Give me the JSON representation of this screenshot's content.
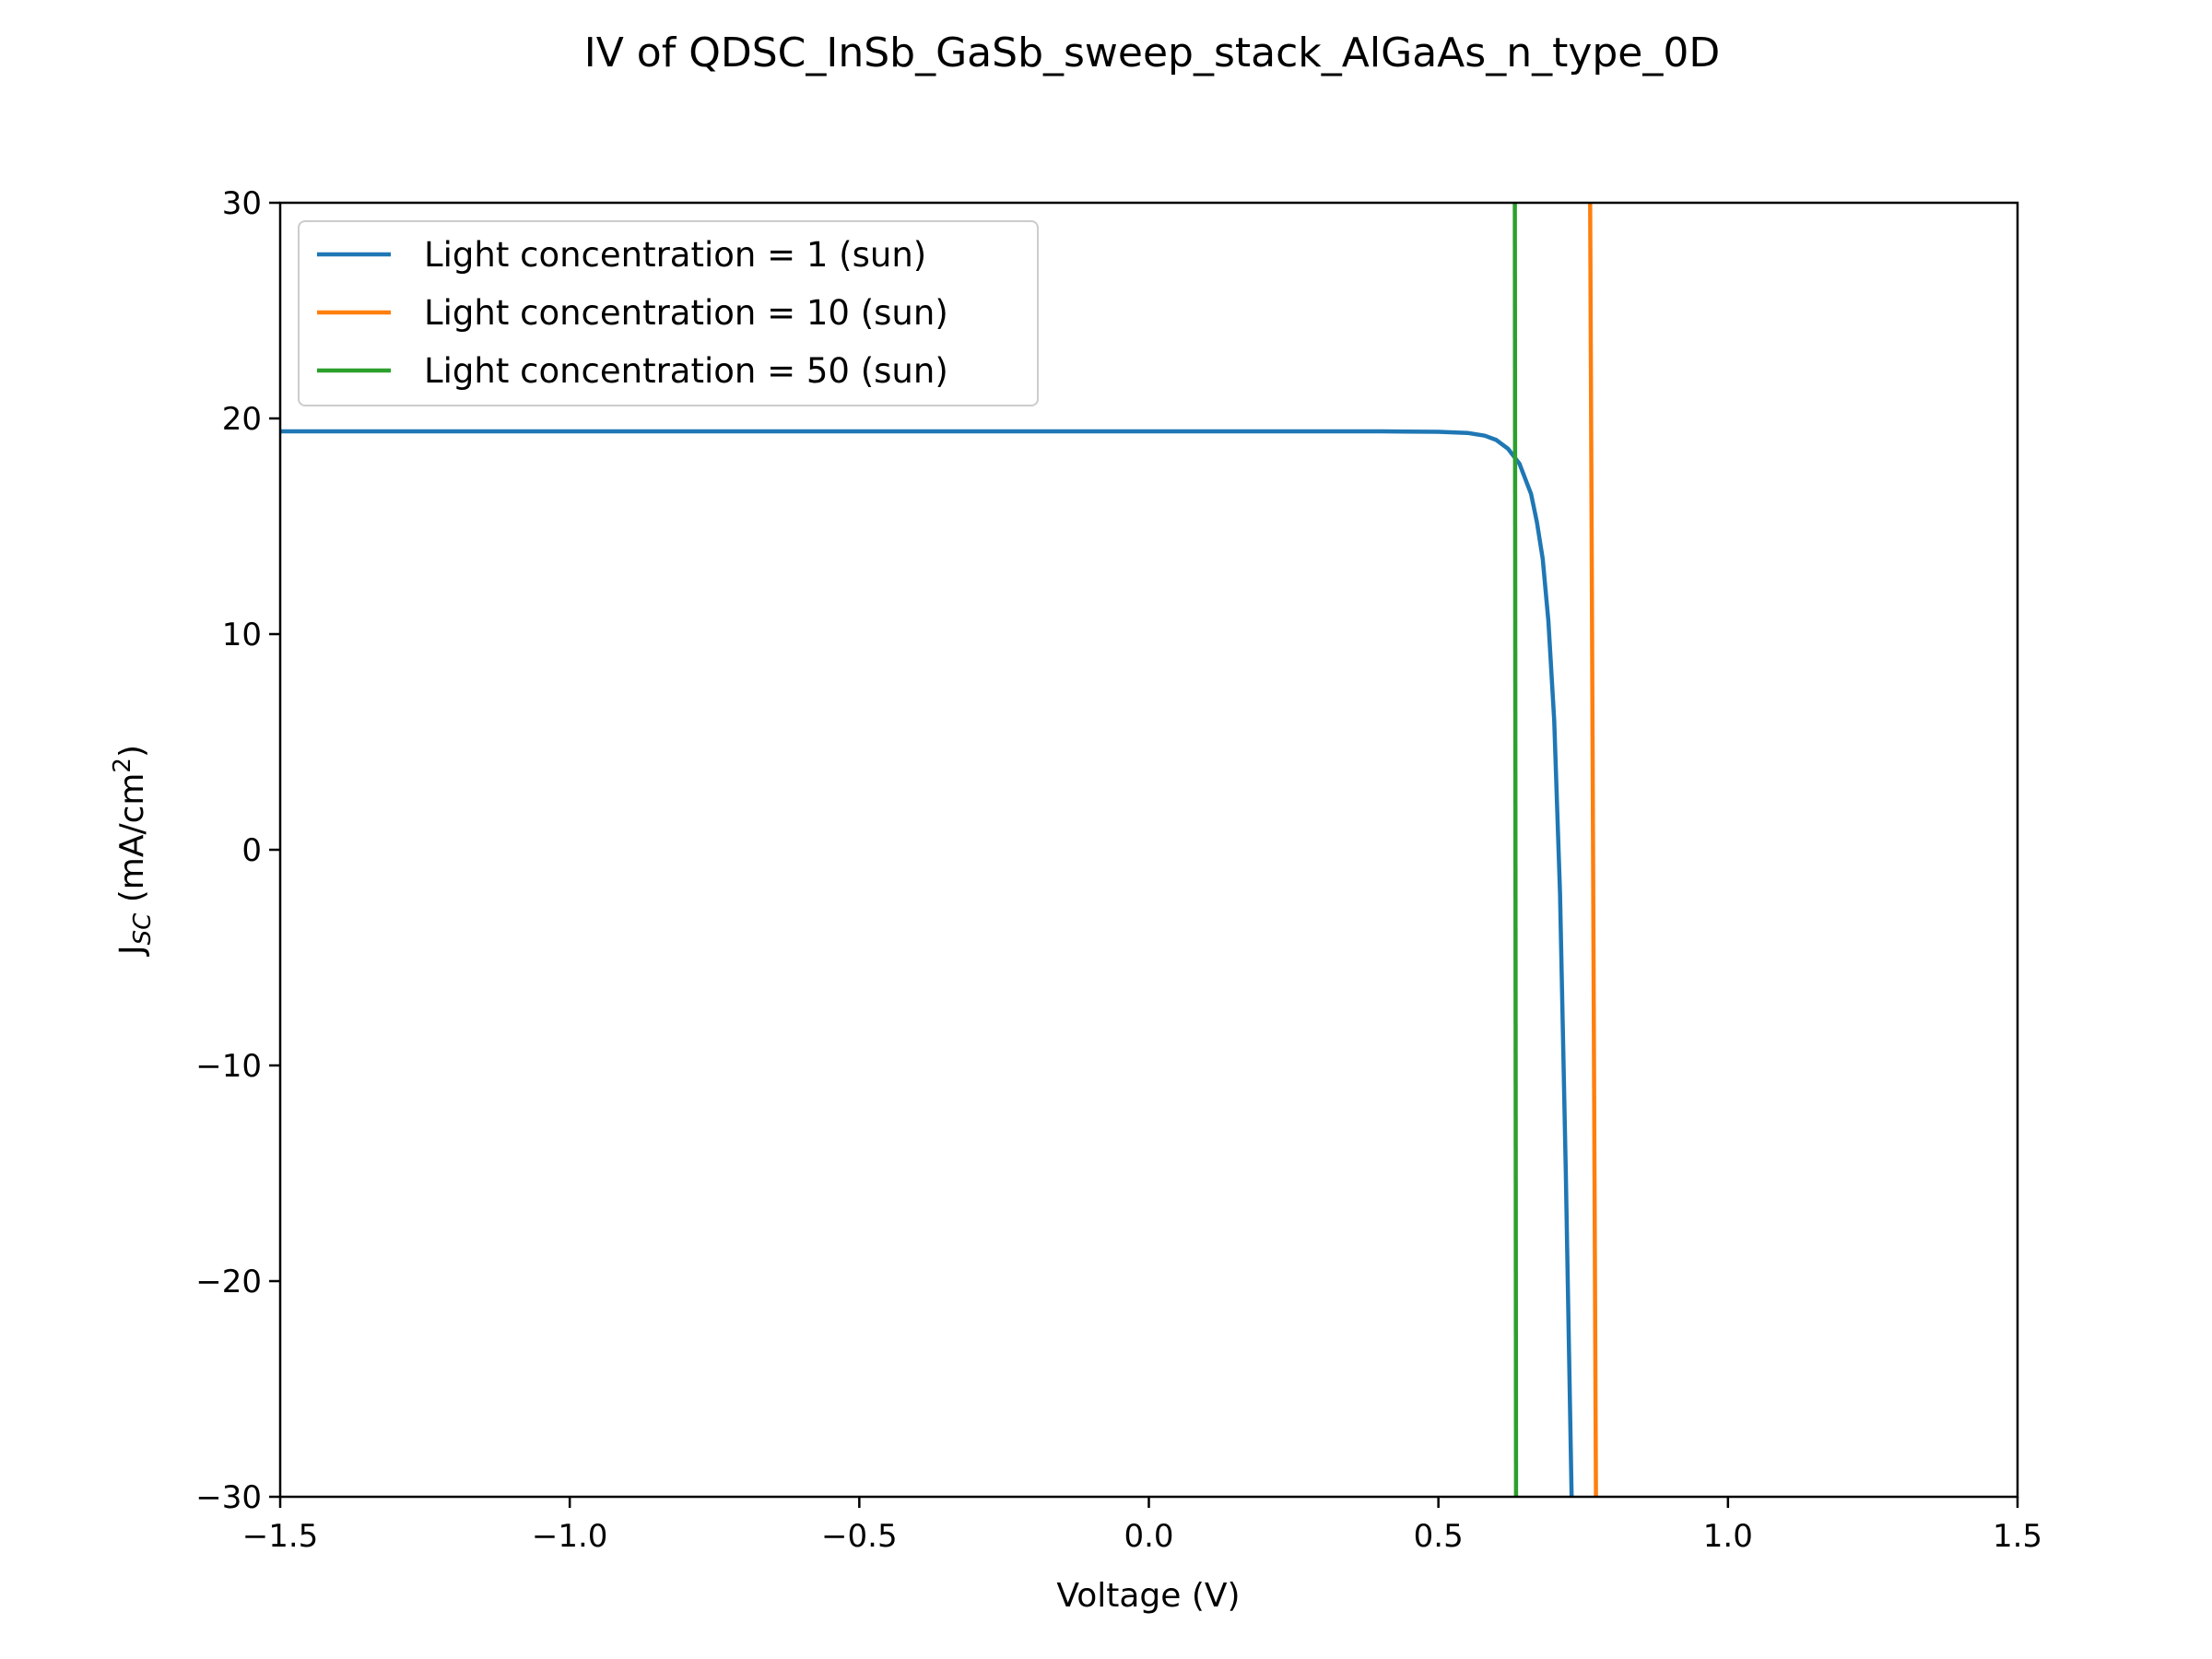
{
  "chart_data": {
    "type": "line",
    "title": "IV of QDSC_InSb_GaSb_sweep_stack_AlGaAs_n_type_0D",
    "xlabel": "Voltage (V)",
    "ylabel": {
      "main": "J",
      "sub": "SC",
      "unit": " (mA/cm",
      "sup": "2",
      "close": ")"
    },
    "xlim": [
      -1.5,
      1.5
    ],
    "ylim": [
      -30,
      30
    ],
    "xticks": [
      -1.5,
      -1.0,
      -0.5,
      0.0,
      0.5,
      1.0,
      1.5
    ],
    "xtick_labels": [
      "−1.5",
      "−1.0",
      "−0.5",
      "0.0",
      "0.5",
      "1.0",
      "1.5"
    ],
    "yticks": [
      -30,
      -20,
      -10,
      0,
      10,
      20,
      30
    ],
    "ytick_labels": [
      "−30",
      "−20",
      "−10",
      "0",
      "10",
      "20",
      "30"
    ],
    "grid": false,
    "legend_position": "upper-left",
    "series": [
      {
        "name": "Light concentration = 1 (sun)",
        "color": "#1f77b4",
        "points": [
          [
            -1.5,
            19.4
          ],
          [
            0.0,
            19.4
          ],
          [
            0.4,
            19.4
          ],
          [
            0.5,
            19.38
          ],
          [
            0.55,
            19.33
          ],
          [
            0.58,
            19.2
          ],
          [
            0.6,
            19.0
          ],
          [
            0.62,
            18.6
          ],
          [
            0.64,
            17.9
          ],
          [
            0.66,
            16.5
          ],
          [
            0.67,
            15.2
          ],
          [
            0.68,
            13.5
          ],
          [
            0.69,
            10.6
          ],
          [
            0.7,
            6.0
          ],
          [
            0.71,
            -2.0
          ],
          [
            0.72,
            -15.0
          ],
          [
            0.73,
            -30.0
          ]
        ]
      },
      {
        "name": "Light concentration = 10 (sun)",
        "color": "#ff7f0e",
        "points": [
          [
            0.762,
            30.0
          ],
          [
            0.772,
            -30.0
          ]
        ]
      },
      {
        "name": "Light concentration = 50 (sun)",
        "color": "#2ca02c",
        "points": [
          [
            0.632,
            30.0
          ],
          [
            0.634,
            -30.0
          ]
        ]
      }
    ]
  }
}
